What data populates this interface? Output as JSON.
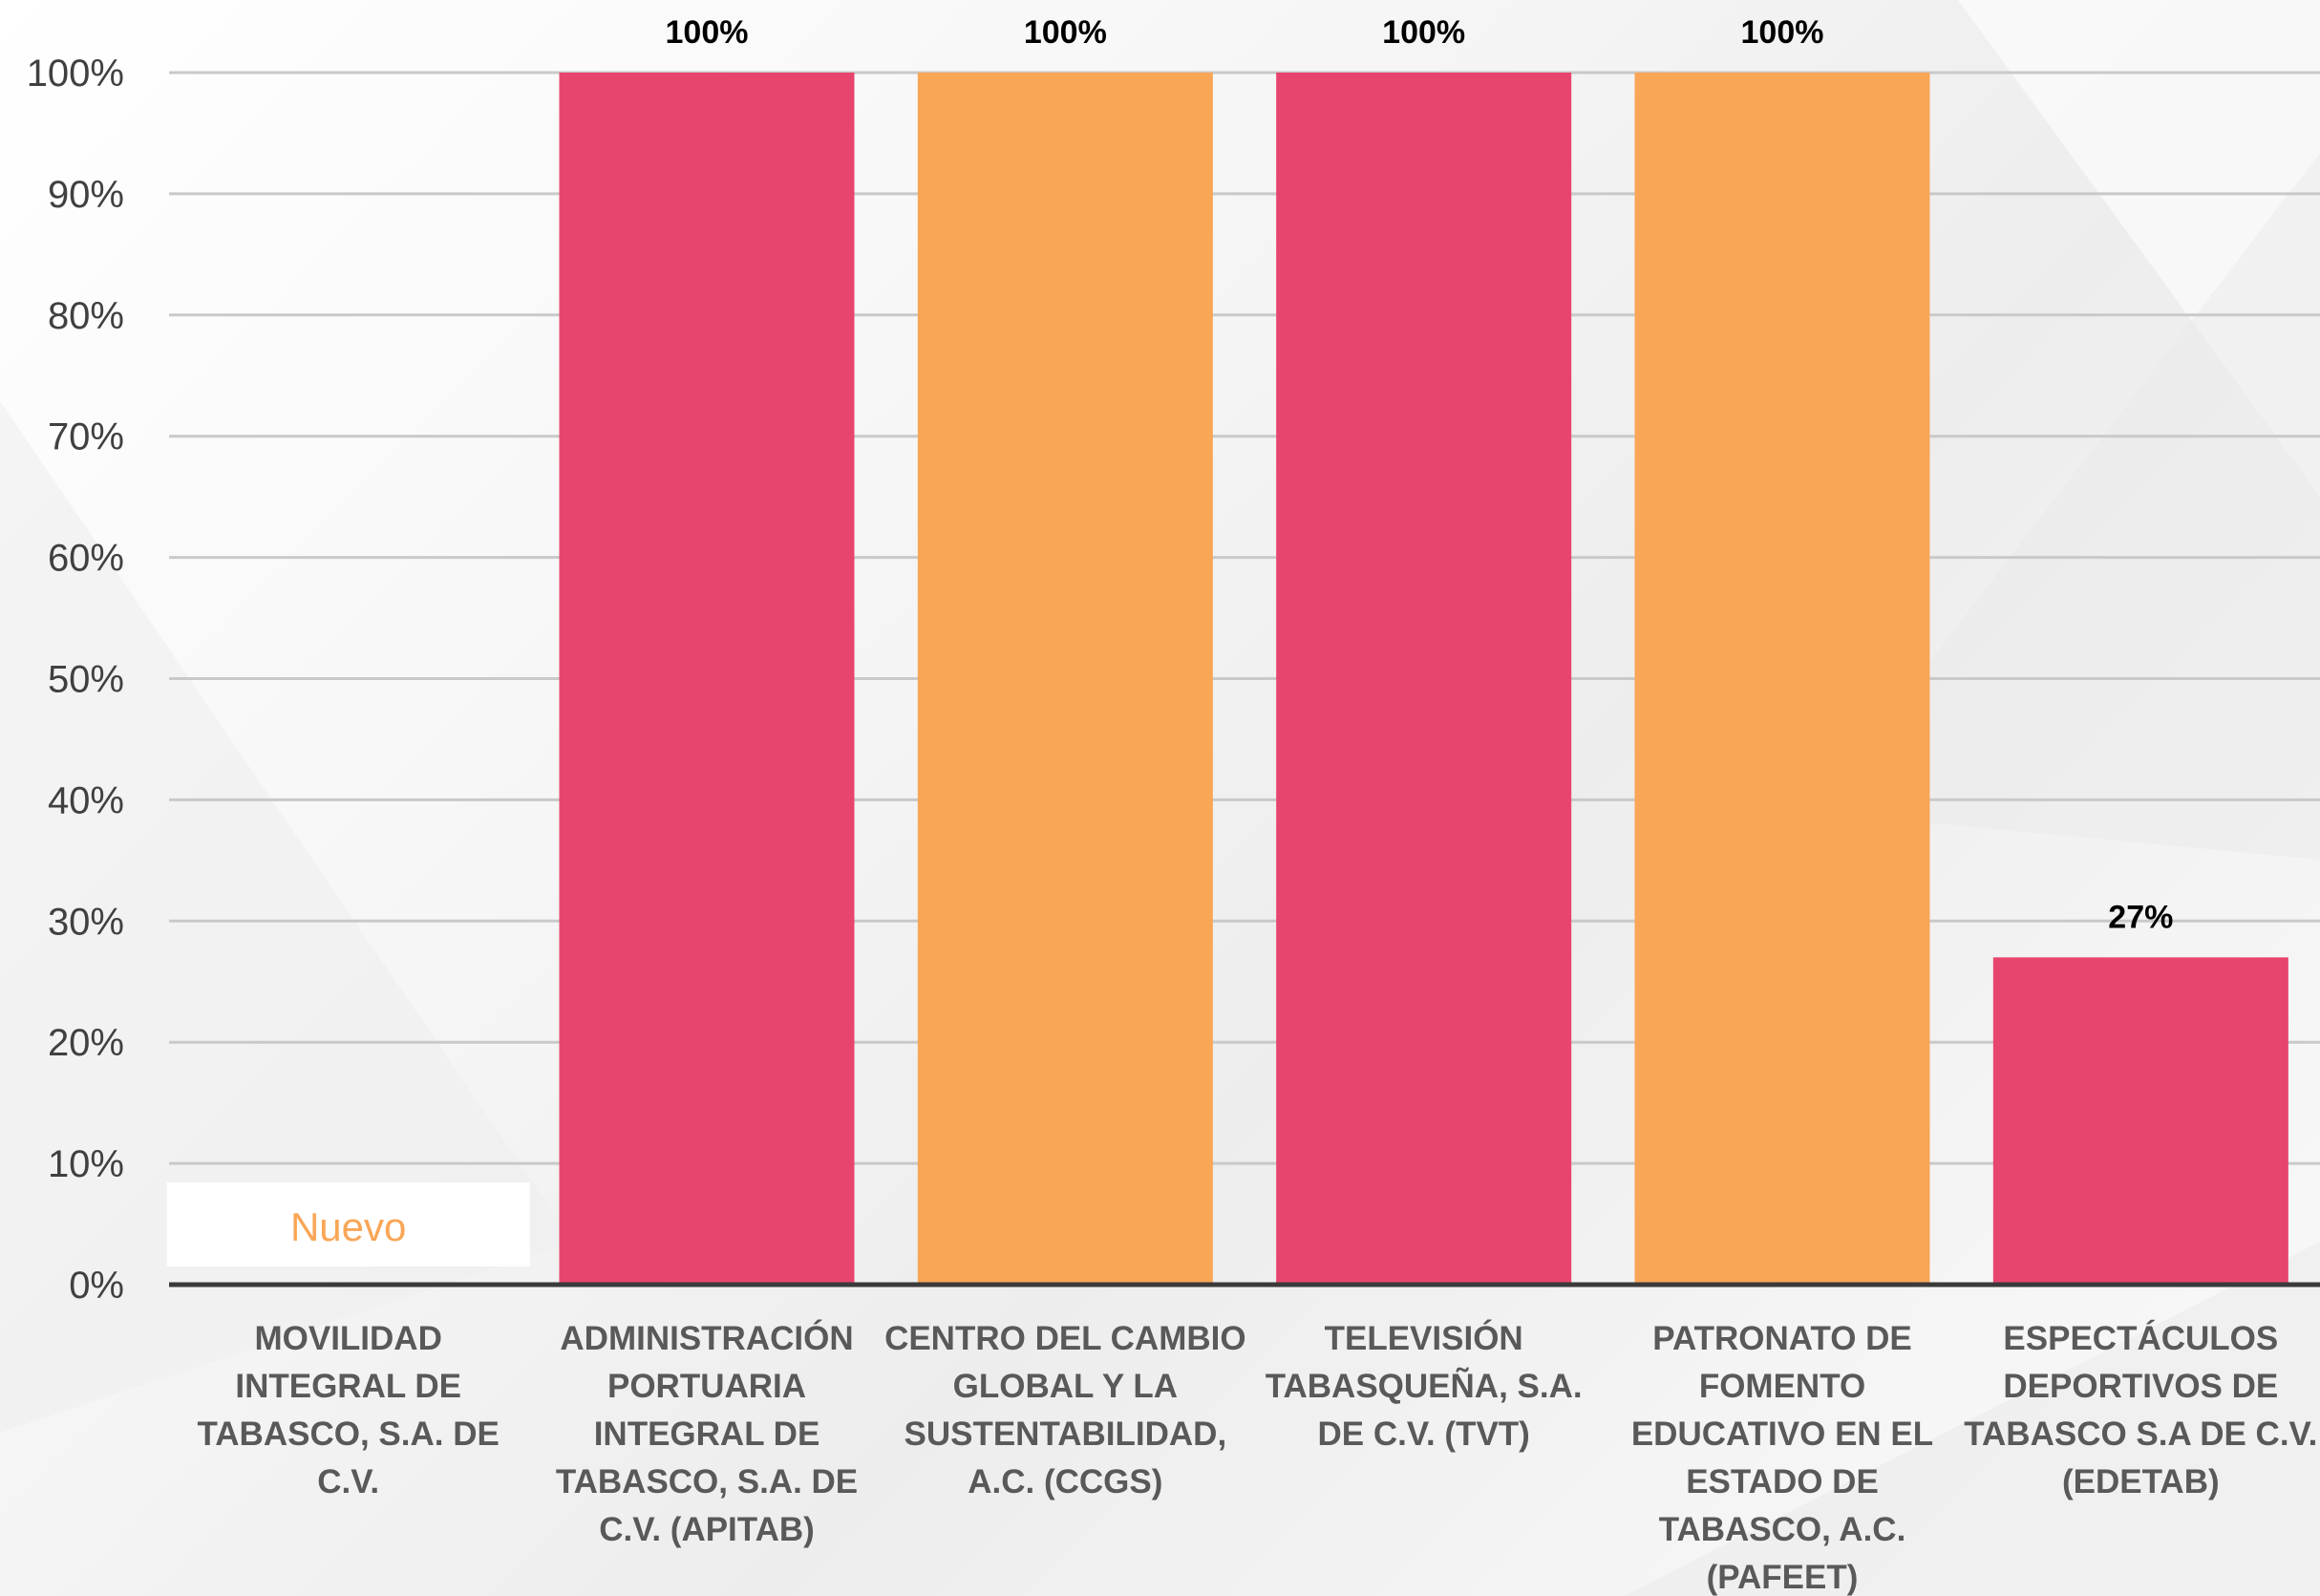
{
  "chart_data": {
    "type": "bar",
    "categories": [
      [
        "MOVILIDAD",
        "INTEGRAL DE",
        "TABASCO, S.A. DE",
        "C.V."
      ],
      [
        "ADMINISTRACIÓN",
        "PORTUARIA",
        "INTEGRAL DE",
        "TABASCO, S.A. DE",
        "C.V. (APITAB)"
      ],
      [
        "CENTRO DEL CAMBIO",
        "GLOBAL Y LA",
        "SUSTENTABILIDAD,",
        "A.C. (CCGS)"
      ],
      [
        "TELEVISIÓN",
        "TABASQUEÑA, S.A.",
        "DE C.V. (TVT)"
      ],
      [
        "PATRONATO DE",
        "FOMENTO",
        "EDUCATIVO EN EL",
        "ESTADO DE",
        "TABASCO, A.C.",
        "(PAFEET)"
      ],
      [
        "ESPECTÁCULOS",
        "DEPORTIVOS DE",
        "TABASCO S.A DE C.V.",
        "(EDETAB)"
      ]
    ],
    "values": [
      null,
      100,
      100,
      100,
      100,
      27
    ],
    "data_labels": [
      "",
      "100%",
      "100%",
      "100%",
      "100%",
      "27%"
    ],
    "bar_colors": [
      "#E8456E",
      "#E8456E",
      "#F9A657",
      "#E8456E",
      "#F9A657",
      "#E8456E"
    ],
    "ylim": [
      0,
      100
    ],
    "yticks": [
      0,
      10,
      20,
      30,
      40,
      50,
      60,
      70,
      80,
      90,
      100
    ],
    "ytick_labels": [
      "0%",
      "10%",
      "20%",
      "30%",
      "40%",
      "50%",
      "60%",
      "70%",
      "80%",
      "90%",
      "100%"
    ],
    "grid": true,
    "annotations": [
      {
        "category_index": 0,
        "text": "Nuevo",
        "color": "#F9A657"
      }
    ]
  }
}
